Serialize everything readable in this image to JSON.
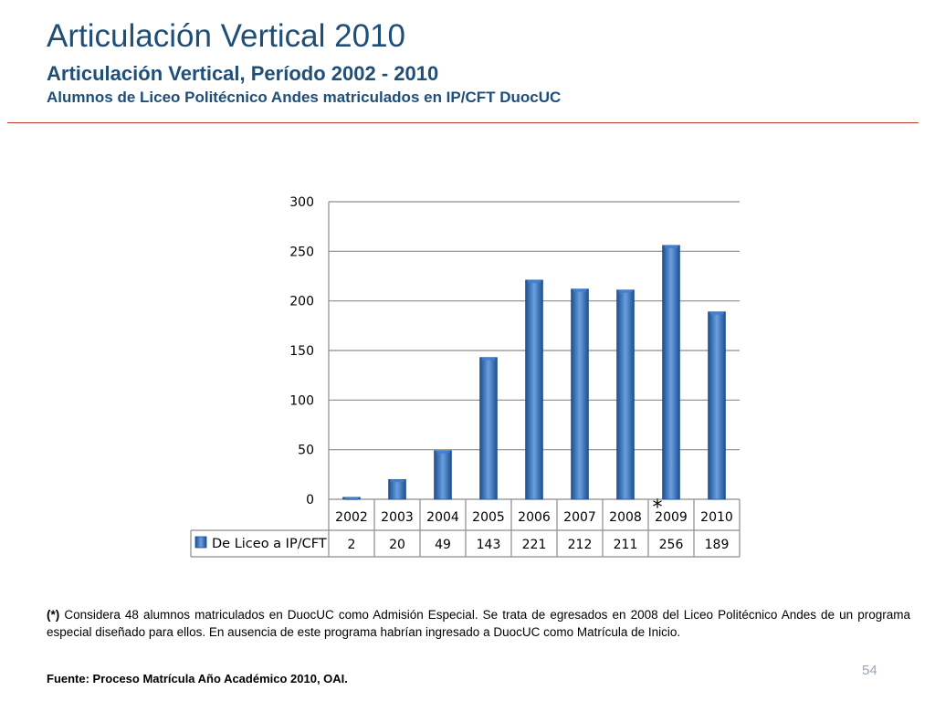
{
  "header": {
    "title": "Articulación Vertical 2010",
    "subtitle": "Articulación Vertical, Período 2002 - 2010",
    "subtitle2": "Alumnos de Liceo Politécnico Andes matriculados en IP/CFT DuocUC"
  },
  "chart_data": {
    "type": "bar",
    "categories": [
      "2002",
      "2003",
      "2004",
      "2005",
      "2006",
      "2007",
      "2008",
      "2009",
      "2010"
    ],
    "series": [
      {
        "name": "De Liceo a IP/CFT",
        "values": [
          2,
          20,
          49,
          143,
          221,
          212,
          211,
          256,
          189
        ]
      }
    ],
    "yticks": [
      "0",
      "50",
      "100",
      "150",
      "200",
      "250",
      "300"
    ],
    "ylim": [
      0,
      300
    ],
    "grid": true,
    "annotation": {
      "category": "2009",
      "text": "*"
    },
    "data_table": true,
    "colors": {
      "bar_dark": "#1c4e8f",
      "bar_mid": "#3f7ed0",
      "bar_light": "#6a9fe0",
      "grid": "#8c8c8c"
    }
  },
  "footnote": {
    "marker": "(*)",
    "text": " Considera 48 alumnos matriculados en DuocUC como Admisión Especial. Se trata de egresados en 2008 del Liceo Politécnico Andes de un programa especial diseñado para ellos. En ausencia de este programa habrían ingresado a DuocUC como Matrícula de Inicio."
  },
  "source": "Fuente: Proceso Matrícula Año Académico 2010, OAI.",
  "page_number": "54"
}
